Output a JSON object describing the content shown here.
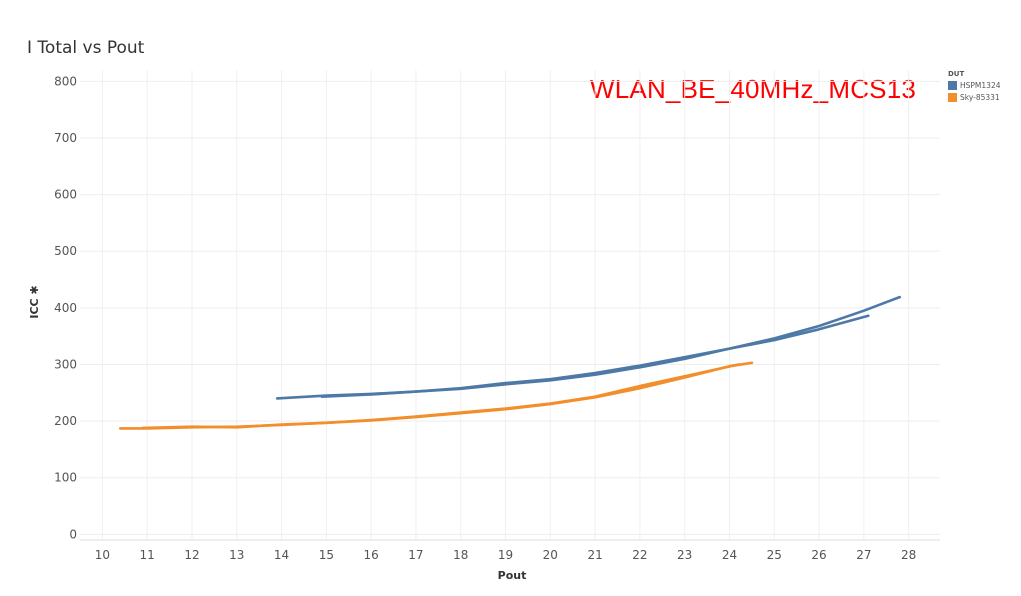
{
  "chart_data": {
    "type": "line",
    "title": "I Total vs Pout",
    "annotation": "WLAN_BE_40MHz_MCS13",
    "xlabel": "Pout",
    "ylabel": "ICC ✱",
    "xlim": [
      9.5,
      28.7
    ],
    "ylim": [
      -10,
      820
    ],
    "xticks": [
      10,
      11,
      12,
      13,
      14,
      15,
      16,
      17,
      18,
      19,
      20,
      21,
      22,
      23,
      24,
      25,
      26,
      27,
      28
    ],
    "yticks": [
      0,
      100,
      200,
      300,
      400,
      500,
      600,
      700,
      800
    ],
    "grid": true,
    "legend": {
      "title": "DUT",
      "position": "top-right"
    },
    "series": [
      {
        "name": "HSPM1324",
        "color": "#4e79a7",
        "x": [
          13.9,
          15,
          16,
          17,
          18,
          19,
          20,
          21,
          22,
          23,
          24,
          25,
          26,
          27,
          27.8
        ],
        "y": [
          240,
          245,
          248,
          252,
          257,
          265,
          272,
          282,
          295,
          310,
          328,
          346,
          368,
          395,
          419
        ]
      },
      {
        "name": "HSPM1324",
        "color": "#4e79a7",
        "x": [
          14.9,
          16,
          17,
          18,
          19,
          20,
          21,
          22,
          23,
          24,
          25,
          26,
          27.1
        ],
        "y": [
          243,
          247,
          252,
          258,
          267,
          274,
          285,
          298,
          313,
          328,
          343,
          362,
          386
        ]
      },
      {
        "name": "Sky-85331",
        "color": "#f28e2b",
        "x": [
          10.4,
          11,
          12,
          13,
          14,
          15,
          16,
          17,
          18,
          19,
          20,
          21,
          22,
          23,
          24,
          24.5
        ],
        "y": [
          187,
          187,
          189,
          190,
          193,
          197,
          201,
          207,
          214,
          221,
          230,
          242,
          258,
          277,
          297,
          303
        ]
      },
      {
        "name": "Sky-85331",
        "color": "#f28e2b",
        "x": [
          10.9,
          12,
          13,
          14,
          15,
          16,
          17,
          18,
          19,
          20,
          21,
          22,
          23,
          24.2
        ],
        "y": [
          188,
          190,
          189,
          194,
          197,
          202,
          208,
          215,
          222,
          231,
          243,
          262,
          279,
          300
        ]
      }
    ]
  }
}
